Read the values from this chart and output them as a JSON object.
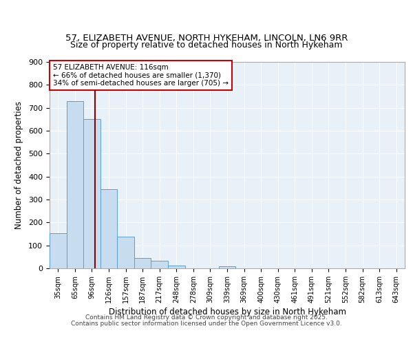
{
  "title_line1": "57, ELIZABETH AVENUE, NORTH HYKEHAM, LINCOLN, LN6 9RR",
  "title_line2": "Size of property relative to detached houses in North Hykeham",
  "xlabel": "Distribution of detached houses by size in North Hykeham",
  "ylabel": "Number of detached properties",
  "bar_labels": [
    "35sqm",
    "65sqm",
    "96sqm",
    "126sqm",
    "157sqm",
    "187sqm",
    "217sqm",
    "248sqm",
    "278sqm",
    "309sqm",
    "339sqm",
    "369sqm",
    "400sqm",
    "430sqm",
    "461sqm",
    "491sqm",
    "521sqm",
    "552sqm",
    "582sqm",
    "613sqm",
    "643sqm"
  ],
  "bar_values": [
    152,
    730,
    652,
    345,
    137,
    46,
    32,
    12,
    0,
    0,
    8,
    0,
    0,
    0,
    0,
    0,
    0,
    0,
    0,
    0,
    0
  ],
  "bar_color": "#c8dcf0",
  "bar_edge_color": "#5a9fd4",
  "vline_color": "#8b0000",
  "annotation_text": "57 ELIZABETH AVENUE: 116sqm\n← 66% of detached houses are smaller (1,370)\n34% of semi-detached houses are larger (705) →",
  "annotation_box_color": "#ffffff",
  "annotation_box_edge": "#cc0000",
  "ylim": [
    0,
    900
  ],
  "yticks": [
    0,
    100,
    200,
    300,
    400,
    500,
    600,
    700,
    800,
    900
  ],
  "bg_color": "#e8f0f8",
  "grid_color": "#ffffff",
  "footer_line1": "Contains HM Land Registry data © Crown copyright and database right 2025.",
  "footer_line2": "Contains public sector information licensed under the Open Government Licence v3.0."
}
